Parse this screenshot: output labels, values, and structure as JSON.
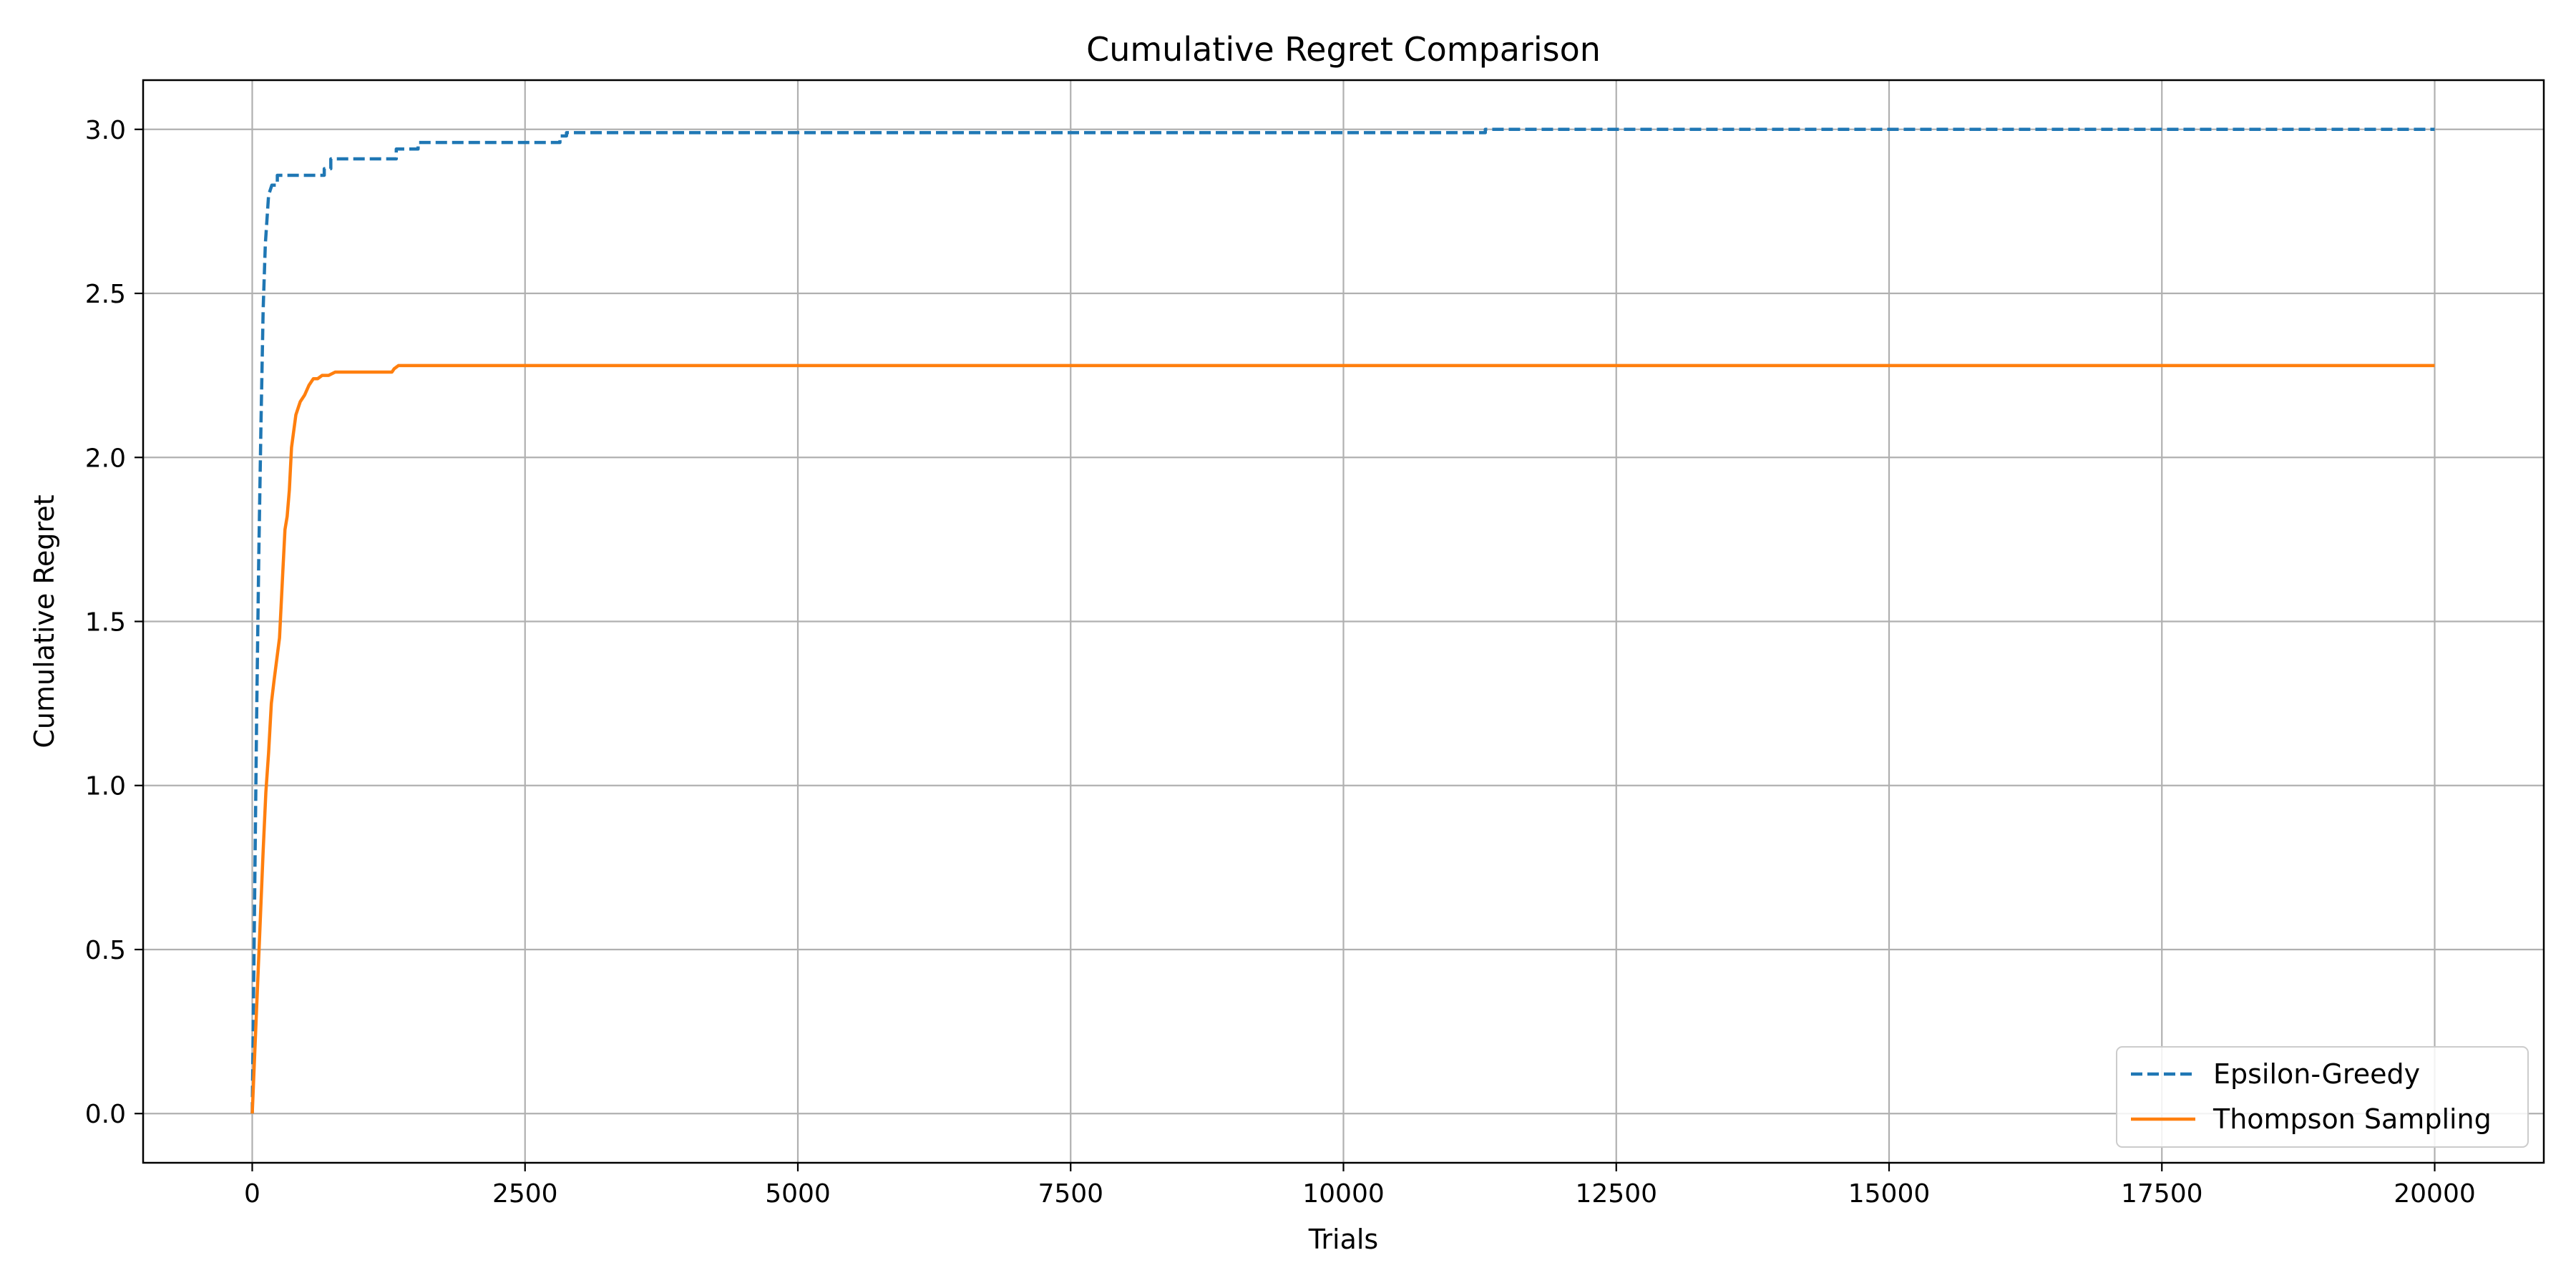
{
  "chart_data": {
    "type": "line",
    "title": "Cumulative Regret Comparison",
    "xlabel": "Trials",
    "ylabel": "Cumulative Regret",
    "xlim": [
      -1000,
      21000
    ],
    "ylim": [
      -0.15,
      3.15
    ],
    "xticks": [
      0,
      2500,
      5000,
      7500,
      10000,
      12500,
      15000,
      17500,
      20000
    ],
    "xtick_labels": [
      "0",
      "2500",
      "5000",
      "7500",
      "10000",
      "12500",
      "15000",
      "17500",
      "20000"
    ],
    "yticks": [
      0.0,
      0.5,
      1.0,
      1.5,
      2.0,
      2.5,
      3.0
    ],
    "ytick_labels": [
      "0.0",
      "0.5",
      "1.0",
      "1.5",
      "2.0",
      "2.5",
      "3.0"
    ],
    "grid": true,
    "legend_position": "lower-right",
    "series": [
      {
        "name": "Epsilon-Greedy",
        "color": "#1f77b4",
        "line_style": "dashed",
        "x": [
          0,
          20,
          40,
          60,
          80,
          100,
          120,
          150,
          180,
          200,
          230,
          230,
          300,
          300,
          660,
          660,
          720,
          720,
          780,
          780,
          1320,
          1320,
          1360,
          1360,
          1520,
          1520,
          2820,
          2820,
          2880,
          2880,
          11300,
          11300,
          20000
        ],
        "y": [
          0.0,
          0.6,
          1.2,
          1.7,
          2.1,
          2.45,
          2.65,
          2.8,
          2.83,
          2.83,
          2.83,
          2.86,
          2.86,
          2.86,
          2.86,
          2.88,
          2.88,
          2.91,
          2.91,
          2.91,
          2.91,
          2.94,
          2.94,
          2.94,
          2.94,
          2.96,
          2.96,
          2.98,
          2.98,
          2.99,
          2.99,
          3.0,
          3.0
        ]
      },
      {
        "name": "Thompson Sampling",
        "color": "#ff7f0e",
        "line_style": "solid",
        "x": [
          0,
          25,
          50,
          75,
          100,
          125,
          150,
          175,
          200,
          250,
          280,
          300,
          320,
          340,
          360,
          380,
          400,
          420,
          440,
          480,
          520,
          560,
          600,
          640,
          700,
          760,
          800,
          900,
          1000,
          1100,
          1280,
          1300,
          1340,
          1400,
          2000,
          5000,
          10000,
          15000,
          20000
        ],
        "y": [
          0.0,
          0.2,
          0.4,
          0.6,
          0.8,
          0.98,
          1.1,
          1.25,
          1.32,
          1.45,
          1.65,
          1.78,
          1.82,
          1.9,
          2.03,
          2.08,
          2.13,
          2.15,
          2.17,
          2.19,
          2.22,
          2.24,
          2.24,
          2.25,
          2.25,
          2.26,
          2.26,
          2.26,
          2.26,
          2.26,
          2.26,
          2.27,
          2.28,
          2.28,
          2.28,
          2.28,
          2.28,
          2.28,
          2.28
        ]
      }
    ]
  }
}
